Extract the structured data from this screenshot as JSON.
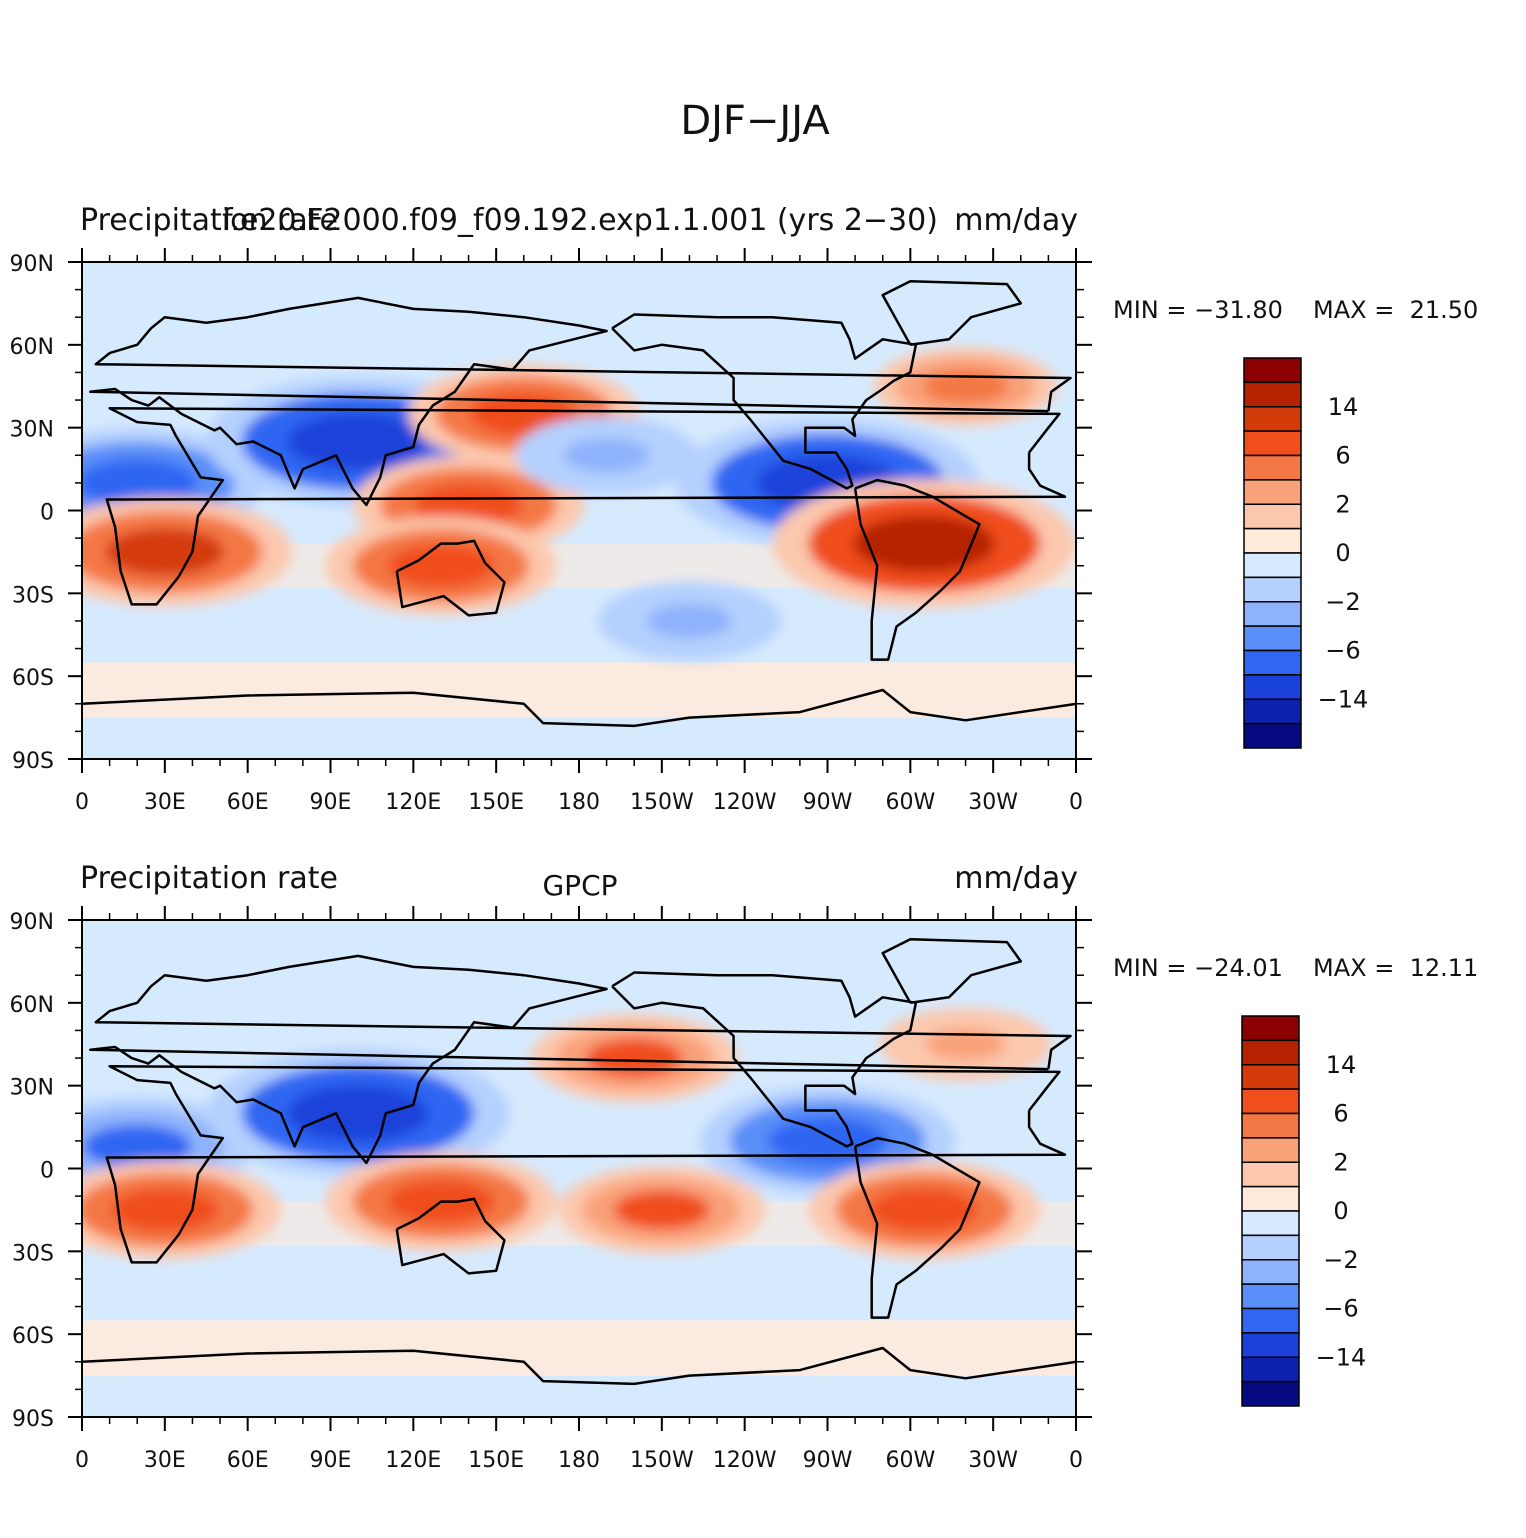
{
  "figure": {
    "title": "DJF−JJA",
    "lat_ticks": [
      "90N",
      "60N",
      "30N",
      "0",
      "30S",
      "60S",
      "90S"
    ],
    "lon_ticks": [
      "0",
      "30E",
      "60E",
      "90E",
      "120E",
      "150E",
      "180",
      "150W",
      "120W",
      "90W",
      "60W",
      "30W",
      "0"
    ],
    "legend_labels": [
      "14",
      "6",
      "2",
      "0",
      "−2",
      "−6",
      "−14"
    ],
    "legend_colors": [
      "#8b0000",
      "#b52200",
      "#d43b0a",
      "#f04e1c",
      "#f47845",
      "#f9a27a",
      "#fcc8ad",
      "#feeadb",
      "#d6eafe",
      "#b4d0fe",
      "#8eb2fc",
      "#5a8ef8",
      "#2f66f2",
      "#1a42da",
      "#0d22ac",
      "#050a80"
    ]
  },
  "panels": [
    {
      "left_title": "Precipitation rate",
      "center_title": "f.e20.F2000.f09_f09.192.exp1.1.001 (yrs 2−30)",
      "right_title": "mm/day",
      "min_label": "MIN = −31.80",
      "max_label": "MAX =  21.50"
    },
    {
      "left_title": "Precipitation rate",
      "center_title": "GPCP",
      "right_title": "mm/day",
      "min_label": "MIN = −24.01",
      "max_label": "MAX =  12.11"
    }
  ],
  "map_data": [
    {
      "type": "filled-contour-map",
      "variable": "Precipitation rate",
      "units": "mm/day",
      "season_difference": "DJF−JJA",
      "min": -31.8,
      "max": 21.5,
      "regions": [
        {
          "lon": 20,
          "lat": 10,
          "value": -10
        },
        {
          "lon": 100,
          "lat": 25,
          "value": -14
        },
        {
          "lon": 160,
          "lat": 35,
          "value": 8
        },
        {
          "lon": 140,
          "lat": 2,
          "value": 8
        },
        {
          "lon": -90,
          "lat": 10,
          "value": -14
        },
        {
          "lon": -55,
          "lat": -12,
          "value": 14
        },
        {
          "lon": 30,
          "lat": -15,
          "value": 10
        },
        {
          "lon": 130,
          "lat": -20,
          "value": 8
        },
        {
          "lon": -40,
          "lat": 45,
          "value": 4
        },
        {
          "lon": -170,
          "lat": 20,
          "value": -4
        },
        {
          "lon": -140,
          "lat": -40,
          "value": -4
        }
      ]
    },
    {
      "type": "filled-contour-map",
      "variable": "Precipitation rate",
      "units": "mm/day",
      "source": "GPCP",
      "season_difference": "DJF−JJA",
      "min": -24.01,
      "max": 12.11,
      "regions": [
        {
          "lon": 20,
          "lat": 8,
          "value": -8
        },
        {
          "lon": 100,
          "lat": 20,
          "value": -14
        },
        {
          "lon": -160,
          "lat": 40,
          "value": 6
        },
        {
          "lon": -150,
          "lat": -15,
          "value": 6
        },
        {
          "lon": -90,
          "lat": 10,
          "value": -10
        },
        {
          "lon": -55,
          "lat": -15,
          "value": 8
        },
        {
          "lon": 30,
          "lat": -15,
          "value": 8
        },
        {
          "lon": 130,
          "lat": -12,
          "value": 8
        },
        {
          "lon": -40,
          "lat": 45,
          "value": 3
        }
      ]
    }
  ]
}
